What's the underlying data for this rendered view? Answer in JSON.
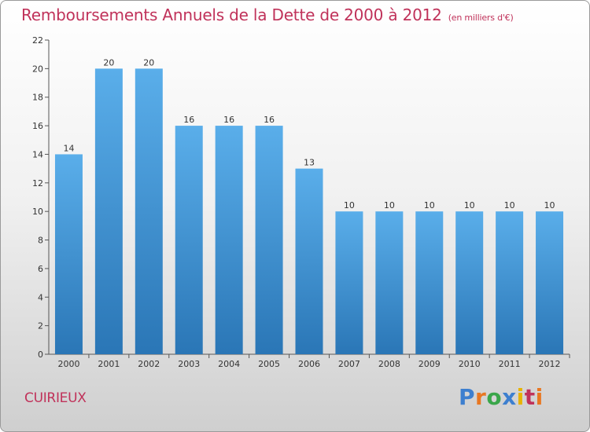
{
  "header": {
    "title": "Remboursements Annuels de la Dette de 2000 à 2012",
    "subtitle": "(en milliers d'€)"
  },
  "footer": {
    "place": "CUIRIEUX",
    "logo": "Proxiti"
  },
  "colors": {
    "title": "#c0325a",
    "bar_top": "#5aaeea",
    "bar_bottom": "#2a76b6",
    "logo": [
      "#3d7fcf",
      "#e87722",
      "#3aa64a",
      "#3d7fcf",
      "#e8b300",
      "#c0325a",
      "#e87722"
    ]
  },
  "chart_data": {
    "type": "bar",
    "title": "Remboursements Annuels de la Dette de 2000 à 2012",
    "subtitle": "(en milliers d'€)",
    "categories": [
      "2000",
      "2001",
      "2002",
      "2003",
      "2004",
      "2005",
      "2006",
      "2007",
      "2008",
      "2009",
      "2010",
      "2011",
      "2012"
    ],
    "values": [
      14,
      20,
      20,
      16,
      16,
      16,
      13,
      10,
      10,
      10,
      10,
      10,
      10
    ],
    "ylim": [
      0,
      22
    ],
    "yticks": [
      0,
      2,
      4,
      6,
      8,
      10,
      12,
      14,
      16,
      18,
      20,
      22
    ],
    "grid": false,
    "data_labels": true
  }
}
